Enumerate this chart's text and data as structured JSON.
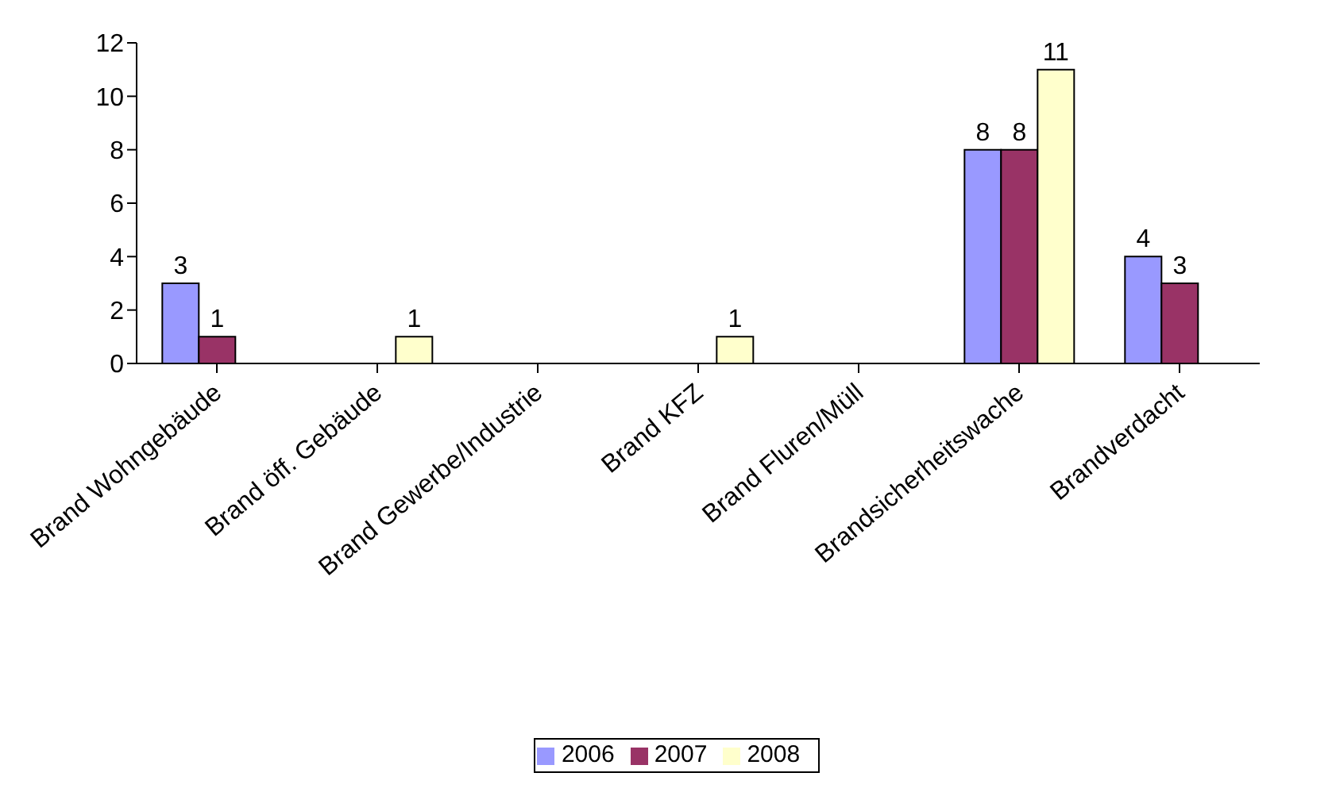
{
  "chart_data": {
    "type": "bar",
    "categories": [
      "Brand Wohngebäude",
      "Brand öff. Gebäude",
      "Brand Gewerbe/Industrie",
      "Brand KFZ",
      "Brand Fluren/Müll",
      "Brandsicherheitswache",
      "Brandverdacht"
    ],
    "series": [
      {
        "name": "2006",
        "color": "#9999ff",
        "values": [
          3,
          0,
          0,
          0,
          0,
          8,
          4
        ],
        "value_labels": [
          "3",
          null,
          null,
          null,
          null,
          "8",
          "4"
        ]
      },
      {
        "name": "2007",
        "color": "#993366",
        "values": [
          1,
          0,
          0,
          0,
          0,
          8,
          3
        ],
        "value_labels": [
          "1",
          null,
          null,
          null,
          null,
          "8",
          "3"
        ]
      },
      {
        "name": "2008",
        "color": "#ffffcc",
        "values": [
          0,
          1,
          0,
          1,
          0,
          11,
          0
        ],
        "value_labels": [
          null,
          "1",
          null,
          "1",
          null,
          "11",
          null
        ]
      }
    ],
    "ylim": [
      0,
      12
    ],
    "yticks": [
      0,
      2,
      4,
      6,
      8,
      10,
      12
    ],
    "grid": false,
    "legend": "bottom"
  }
}
